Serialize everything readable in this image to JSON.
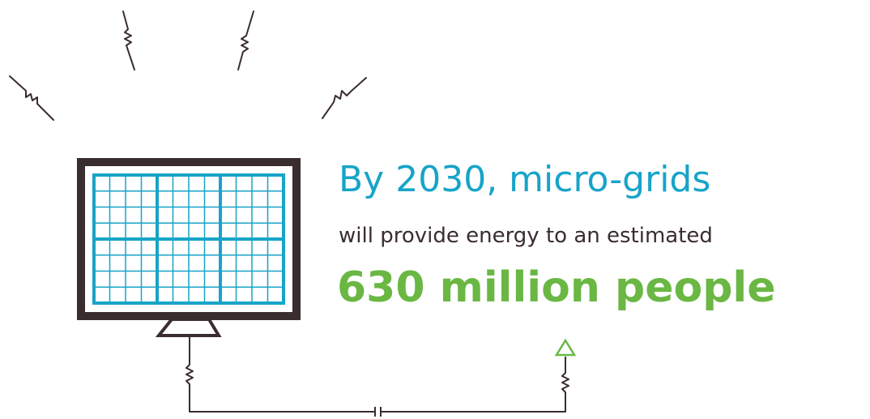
{
  "headline": "By 2030, micro-grids",
  "subline": "will provide energy to an estimated",
  "stat": "630 million people",
  "icons": {
    "panel": "solar-panel-icon",
    "rays": "resistor-ray-icon",
    "arrow": "triangle-arrow-icon",
    "capacitor": "capacitor-icon"
  },
  "colors": {
    "headline": "#17a4c8",
    "body": "#3a2d2f",
    "stat": "#6ab744",
    "panel_frame": "#3a2d2f",
    "panel_grid": "#17a4c8"
  }
}
